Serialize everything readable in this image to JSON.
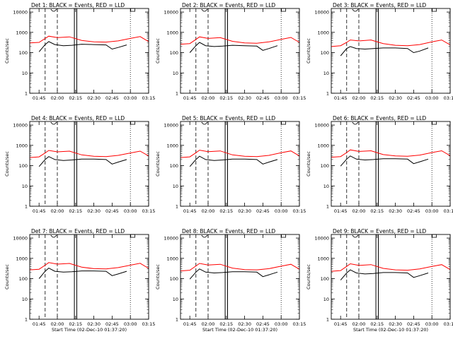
{
  "colors": {
    "events": "#000000",
    "lld": "#ff0000",
    "background": "#ffffff",
    "axes": "#000000"
  },
  "axis_common": {
    "ylabel": "Counts/sec",
    "xlabel_bottom_row": "Start Time (02-Dec-10 01:37:20)",
    "x_tick_labels": [
      "01:45",
      "02:00",
      "02:15",
      "02:30",
      "02:45",
      "03:00",
      "03:15"
    ],
    "y_tick_labels": [
      "1",
      "10",
      "100",
      "1000",
      "10000"
    ]
  },
  "chart_data": [
    {
      "type": "line",
      "title": "Det 1: BLACK = Events, RED = LLD",
      "ylabel": "Counts/sec",
      "xlabel": "",
      "yscale": "log",
      "ylim": [
        1,
        15000
      ],
      "xlim": [
        "01:37:20",
        "03:15"
      ],
      "x_ticks": [
        "01:45",
        "02:00",
        "02:15",
        "02:30",
        "02:45",
        "03:00",
        "03:15"
      ],
      "y_ticks": [
        1,
        10,
        100,
        1000,
        10000
      ],
      "series": [
        {
          "name": "Events",
          "color": "#000000",
          "x": [
            "01:45",
            "01:50",
            "01:53",
            "01:58",
            "02:05",
            "02:12",
            "02:20",
            "02:30",
            "02:40",
            "02:45",
            "02:50",
            "02:57"
          ],
          "y": [
            110,
            250,
            350,
            250,
            220,
            230,
            260,
            250,
            240,
            150,
            180,
            240
          ]
        },
        {
          "name": "LLD",
          "color": "#ff0000",
          "x": [
            "01:37:20",
            "01:45",
            "01:50",
            "01:53",
            "02:00",
            "02:10",
            "02:20",
            "02:30",
            "02:40",
            "02:50",
            "03:00",
            "03:08",
            "03:15"
          ],
          "y": [
            300,
            320,
            500,
            650,
            550,
            600,
            400,
            340,
            330,
            380,
            500,
            620,
            350
          ]
        }
      ]
    },
    {
      "type": "line",
      "title": "Det 2: BLACK = Events, RED = LLD",
      "ylabel": "Counts/sec",
      "xlabel": "",
      "yscale": "log",
      "ylim": [
        1,
        15000
      ],
      "xlim": [
        "01:37:20",
        "03:15"
      ],
      "x_ticks": [
        "01:45",
        "02:00",
        "02:15",
        "02:30",
        "02:45",
        "03:00",
        "03:15"
      ],
      "y_ticks": [
        1,
        10,
        100,
        1000,
        10000
      ],
      "series": [
        {
          "name": "Events",
          "color": "#000000",
          "x": [
            "01:45",
            "01:50",
            "01:53",
            "01:58",
            "02:05",
            "02:12",
            "02:20",
            "02:30",
            "02:40",
            "02:45",
            "02:50",
            "02:57"
          ],
          "y": [
            100,
            220,
            320,
            220,
            200,
            210,
            230,
            220,
            210,
            130,
            160,
            220
          ]
        },
        {
          "name": "LLD",
          "color": "#ff0000",
          "x": [
            "01:37:20",
            "01:45",
            "01:50",
            "01:53",
            "02:00",
            "02:10",
            "02:20",
            "02:30",
            "02:40",
            "02:50",
            "03:00",
            "03:08",
            "03:15"
          ],
          "y": [
            260,
            280,
            450,
            600,
            500,
            550,
            360,
            300,
            290,
            340,
            450,
            560,
            320
          ]
        }
      ]
    },
    {
      "type": "line",
      "title": "Det 3: BLACK = Events, RED = LLD",
      "ylabel": "Counts/sec",
      "xlabel": "",
      "yscale": "log",
      "ylim": [
        1,
        15000
      ],
      "xlim": [
        "01:37:20",
        "03:15"
      ],
      "x_ticks": [
        "01:45",
        "02:00",
        "02:15",
        "02:30",
        "02:45",
        "03:00",
        "03:15"
      ],
      "y_ticks": [
        1,
        10,
        100,
        1000,
        10000
      ],
      "series": [
        {
          "name": "Events",
          "color": "#000000",
          "x": [
            "01:45",
            "01:50",
            "01:53",
            "01:58",
            "02:05",
            "02:12",
            "02:20",
            "02:30",
            "02:40",
            "02:45",
            "02:50",
            "02:57"
          ],
          "y": [
            70,
            160,
            200,
            160,
            150,
            160,
            170,
            170,
            160,
            100,
            120,
            170
          ]
        },
        {
          "name": "LLD",
          "color": "#ff0000",
          "x": [
            "01:37:20",
            "01:45",
            "01:50",
            "01:53",
            "02:00",
            "02:10",
            "02:20",
            "02:30",
            "02:40",
            "02:50",
            "03:00",
            "03:08",
            "03:15"
          ],
          "y": [
            200,
            220,
            320,
            420,
            380,
            420,
            280,
            230,
            220,
            250,
            340,
            420,
            240
          ]
        }
      ]
    },
    {
      "type": "line",
      "title": "Det 4: BLACK = Events, RED = LLD",
      "ylabel": "Counts/sec",
      "xlabel": "",
      "yscale": "log",
      "ylim": [
        1,
        15000
      ],
      "xlim": [
        "01:37:20",
        "03:15"
      ],
      "x_ticks": [
        "01:45",
        "02:00",
        "02:15",
        "02:30",
        "02:45",
        "03:00",
        "03:15"
      ],
      "y_ticks": [
        1,
        10,
        100,
        1000,
        10000
      ],
      "series": [
        {
          "name": "Events",
          "color": "#000000",
          "x": [
            "01:45",
            "01:50",
            "01:53",
            "01:58",
            "02:05",
            "02:12",
            "02:20",
            "02:30",
            "02:40",
            "02:45",
            "02:50",
            "02:57"
          ],
          "y": [
            90,
            200,
            280,
            200,
            180,
            190,
            210,
            210,
            200,
            120,
            150,
            200
          ]
        },
        {
          "name": "LLD",
          "color": "#ff0000",
          "x": [
            "01:37:20",
            "01:45",
            "01:50",
            "01:53",
            "02:00",
            "02:10",
            "02:20",
            "02:30",
            "02:40",
            "02:50",
            "03:00",
            "03:08",
            "03:15"
          ],
          "y": [
            250,
            270,
            420,
            560,
            480,
            520,
            340,
            290,
            280,
            320,
            420,
            520,
            300
          ]
        }
      ]
    },
    {
      "type": "line",
      "title": "Det 5: BLACK = Events, RED = LLD",
      "ylabel": "Counts/sec",
      "xlabel": "",
      "yscale": "log",
      "ylim": [
        1,
        15000
      ],
      "xlim": [
        "01:37:20",
        "03:15"
      ],
      "x_ticks": [
        "01:45",
        "02:00",
        "02:15",
        "02:30",
        "02:45",
        "03:00",
        "03:15"
      ],
      "y_ticks": [
        1,
        10,
        100,
        1000,
        10000
      ],
      "series": [
        {
          "name": "Events",
          "color": "#000000",
          "x": [
            "01:45",
            "01:50",
            "01:53",
            "01:58",
            "02:05",
            "02:12",
            "02:20",
            "02:30",
            "02:40",
            "02:45",
            "02:50",
            "02:57"
          ],
          "y": [
            90,
            200,
            290,
            200,
            180,
            190,
            210,
            210,
            200,
            120,
            150,
            200
          ]
        },
        {
          "name": "LLD",
          "color": "#ff0000",
          "x": [
            "01:37:20",
            "01:45",
            "01:50",
            "01:53",
            "02:00",
            "02:10",
            "02:20",
            "02:30",
            "02:40",
            "02:50",
            "03:00",
            "03:08",
            "03:15"
          ],
          "y": [
            250,
            270,
            430,
            580,
            490,
            530,
            340,
            290,
            280,
            320,
            430,
            530,
            300
          ]
        }
      ]
    },
    {
      "type": "line",
      "title": "Det 6: BLACK = Events, RED = LLD",
      "ylabel": "Counts/sec",
      "xlabel": "",
      "yscale": "log",
      "ylim": [
        1,
        15000
      ],
      "xlim": [
        "01:37:20",
        "03:15"
      ],
      "x_ticks": [
        "01:45",
        "02:00",
        "02:15",
        "02:30",
        "02:45",
        "03:00",
        "03:15"
      ],
      "y_ticks": [
        1,
        10,
        100,
        1000,
        10000
      ],
      "series": [
        {
          "name": "Events",
          "color": "#000000",
          "x": [
            "01:45",
            "01:50",
            "01:53",
            "01:58",
            "02:05",
            "02:12",
            "02:20",
            "02:30",
            "02:40",
            "02:45",
            "02:50",
            "02:57"
          ],
          "y": [
            95,
            210,
            300,
            210,
            190,
            200,
            220,
            220,
            210,
            125,
            155,
            210
          ]
        },
        {
          "name": "LLD",
          "color": "#ff0000",
          "x": [
            "01:37:20",
            "01:45",
            "01:50",
            "01:53",
            "02:00",
            "02:10",
            "02:20",
            "02:30",
            "02:40",
            "02:50",
            "03:00",
            "03:08",
            "03:15"
          ],
          "y": [
            260,
            280,
            440,
            600,
            500,
            540,
            350,
            300,
            290,
            330,
            440,
            540,
            310
          ]
        }
      ]
    },
    {
      "type": "line",
      "title": "Det 7: BLACK = Events, RED = LLD",
      "ylabel": "Counts/sec",
      "xlabel": "Start Time (02-Dec-10 01:37:20)",
      "yscale": "log",
      "ylim": [
        1,
        15000
      ],
      "xlim": [
        "01:37:20",
        "03:15"
      ],
      "x_ticks": [
        "01:45",
        "02:00",
        "02:15",
        "02:30",
        "02:45",
        "03:00",
        "03:15"
      ],
      "y_ticks": [
        1,
        10,
        100,
        1000,
        10000
      ],
      "series": [
        {
          "name": "Events",
          "color": "#000000",
          "x": [
            "01:45",
            "01:50",
            "01:53",
            "01:58",
            "02:05",
            "02:12",
            "02:20",
            "02:30",
            "02:40",
            "02:45",
            "02:50",
            "02:57"
          ],
          "y": [
            100,
            230,
            330,
            230,
            210,
            220,
            240,
            240,
            230,
            140,
            170,
            230
          ]
        },
        {
          "name": "LLD",
          "color": "#ff0000",
          "x": [
            "01:37:20",
            "01:45",
            "01:50",
            "01:53",
            "02:00",
            "02:10",
            "02:20",
            "02:30",
            "02:40",
            "02:50",
            "03:00",
            "03:08",
            "03:15"
          ],
          "y": [
            270,
            290,
            460,
            620,
            520,
            560,
            370,
            310,
            300,
            350,
            460,
            570,
            320
          ]
        }
      ]
    },
    {
      "type": "line",
      "title": "Det 8: BLACK = Events, RED = LLD",
      "ylabel": "Counts/sec",
      "xlabel": "Start Time (02-Dec-10 01:37:20)",
      "yscale": "log",
      "ylim": [
        1,
        15000
      ],
      "xlim": [
        "01:37:20",
        "03:15"
      ],
      "x_ticks": [
        "01:45",
        "02:00",
        "02:15",
        "02:30",
        "02:45",
        "03:00",
        "03:15"
      ],
      "y_ticks": [
        1,
        10,
        100,
        1000,
        10000
      ],
      "series": [
        {
          "name": "Events",
          "color": "#000000",
          "x": [
            "01:45",
            "01:50",
            "01:53",
            "01:58",
            "02:05",
            "02:12",
            "02:20",
            "02:30",
            "02:40",
            "02:45",
            "02:50",
            "02:57"
          ],
          "y": [
            95,
            210,
            300,
            210,
            190,
            200,
            220,
            220,
            210,
            125,
            155,
            210
          ]
        },
        {
          "name": "LLD",
          "color": "#ff0000",
          "x": [
            "01:37:20",
            "01:45",
            "01:50",
            "01:53",
            "02:00",
            "02:10",
            "02:20",
            "02:30",
            "02:40",
            "02:50",
            "03:00",
            "03:08",
            "03:15"
          ],
          "y": [
            240,
            260,
            420,
            560,
            470,
            510,
            330,
            280,
            270,
            310,
            410,
            510,
            290
          ]
        }
      ]
    },
    {
      "type": "line",
      "title": "Det 9: BLACK = Events, RED = LLD",
      "ylabel": "Counts/sec",
      "xlabel": "Start Time (02-Dec-10 01:37:20)",
      "yscale": "log",
      "ylim": [
        1,
        15000
      ],
      "xlim": [
        "01:37:20",
        "03:15"
      ],
      "x_ticks": [
        "01:45",
        "02:00",
        "02:15",
        "02:30",
        "02:45",
        "03:00",
        "03:15"
      ],
      "y_ticks": [
        1,
        10,
        100,
        1000,
        10000
      ],
      "series": [
        {
          "name": "Events",
          "color": "#000000",
          "x": [
            "01:45",
            "01:50",
            "01:53",
            "01:58",
            "02:05",
            "02:12",
            "02:20",
            "02:30",
            "02:40",
            "02:45",
            "02:50",
            "02:57"
          ],
          "y": [
            85,
            190,
            270,
            190,
            170,
            180,
            200,
            200,
            190,
            115,
            140,
            190
          ]
        },
        {
          "name": "LLD",
          "color": "#ff0000",
          "x": [
            "01:37:20",
            "01:45",
            "01:50",
            "01:53",
            "02:00",
            "02:10",
            "02:20",
            "02:30",
            "02:40",
            "02:50",
            "03:00",
            "03:08",
            "03:15"
          ],
          "y": [
            230,
            250,
            400,
            540,
            450,
            490,
            320,
            270,
            260,
            300,
            400,
            490,
            280
          ]
        }
      ]
    }
  ]
}
